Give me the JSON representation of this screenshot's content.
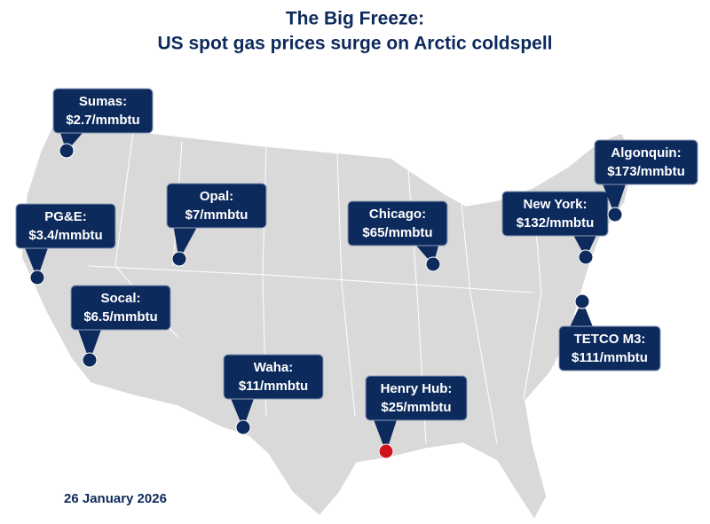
{
  "title": {
    "line1": "The Big Freeze:",
    "line2": "US spot gas prices surge on Arctic coldspell"
  },
  "hubs": [
    {
      "name": "Sumas:",
      "price": "$2.7/mmbtu"
    },
    {
      "name": "PG&E:",
      "price": "$3.4/mmbtu"
    },
    {
      "name": "Opal:",
      "price": "$7/mmbtu"
    },
    {
      "name": "Socal:",
      "price": "$6.5/mmbtu"
    },
    {
      "name": "Waha:",
      "price": "$11/mmbtu"
    },
    {
      "name": "Chicago:",
      "price": "$65/mmbtu"
    },
    {
      "name": "New York:",
      "price": "$132/mmbtu"
    },
    {
      "name": "Algonquin:",
      "price": "$173/mmbtu"
    },
    {
      "name": "TETCO M3:",
      "price": "$111/mmbtu"
    },
    {
      "name": "Henry Hub:",
      "price": "$25/mmbtu"
    }
  ],
  "date": "26 January 2026"
}
